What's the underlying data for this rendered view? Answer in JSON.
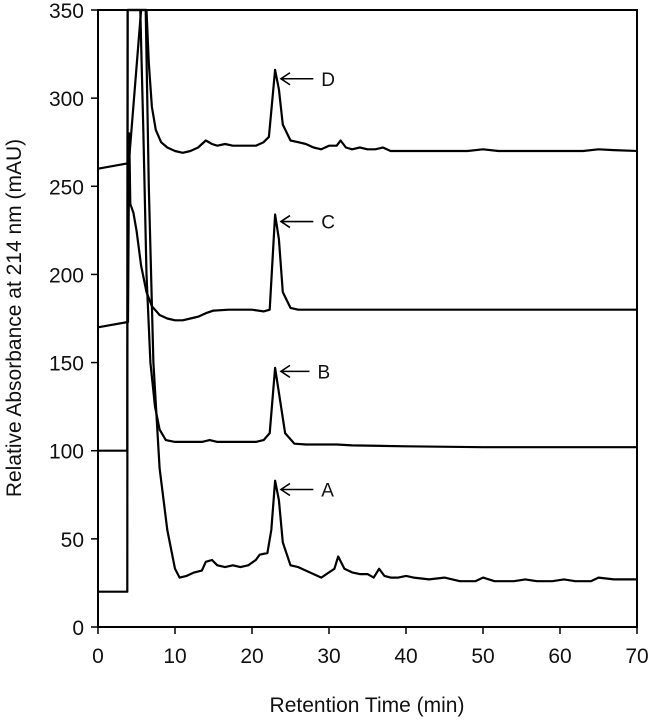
{
  "chart_data": {
    "type": "line",
    "title": "",
    "xlabel": "Retention Time (min)",
    "ylabel": "Relative Absorbance at 214 nm (mAU)",
    "xlim": [
      0,
      70
    ],
    "ylim": [
      0,
      350
    ],
    "x_ticks": [
      0,
      10,
      20,
      30,
      40,
      50,
      60,
      70
    ],
    "y_ticks": [
      0,
      50,
      100,
      150,
      200,
      250,
      300,
      350
    ],
    "grid": false,
    "legend": null,
    "series": [
      {
        "name": "A",
        "peak": {
          "x": 23.0,
          "y": 83
        },
        "points": [
          [
            0,
            20
          ],
          [
            3.8,
            20
          ],
          [
            3.85,
            350
          ],
          [
            6.2,
            350
          ],
          [
            6.6,
            250
          ],
          [
            7.2,
            150
          ],
          [
            8,
            90
          ],
          [
            9,
            55
          ],
          [
            10,
            33
          ],
          [
            10.6,
            28
          ],
          [
            11.5,
            29
          ],
          [
            12.5,
            31
          ],
          [
            13.5,
            32
          ],
          [
            14,
            37
          ],
          [
            14.8,
            38
          ],
          [
            15.5,
            35
          ],
          [
            16.5,
            34
          ],
          [
            17.5,
            35
          ],
          [
            18.5,
            34
          ],
          [
            19.5,
            35
          ],
          [
            20.5,
            38
          ],
          [
            21,
            41
          ],
          [
            22,
            42
          ],
          [
            22.5,
            55
          ],
          [
            23,
            83
          ],
          [
            23.5,
            72
          ],
          [
            24,
            48
          ],
          [
            25,
            35
          ],
          [
            26,
            34
          ],
          [
            27,
            32
          ],
          [
            28,
            30
          ],
          [
            29,
            28
          ],
          [
            30,
            31
          ],
          [
            30.7,
            33
          ],
          [
            31.2,
            40
          ],
          [
            32,
            33
          ],
          [
            33,
            31
          ],
          [
            34,
            30
          ],
          [
            35,
            30
          ],
          [
            35.8,
            28
          ],
          [
            36.5,
            33
          ],
          [
            37.2,
            29
          ],
          [
            38,
            28
          ],
          [
            39,
            28
          ],
          [
            40,
            29
          ],
          [
            41,
            28
          ],
          [
            43,
            27
          ],
          [
            45,
            28
          ],
          [
            47,
            26
          ],
          [
            49,
            26
          ],
          [
            50,
            28
          ],
          [
            51.5,
            26
          ],
          [
            54,
            26
          ],
          [
            55.5,
            27
          ],
          [
            57,
            26
          ],
          [
            59,
            26
          ],
          [
            60.5,
            27
          ],
          [
            62,
            26
          ],
          [
            64,
            26
          ],
          [
            65,
            28
          ],
          [
            67,
            27
          ],
          [
            70,
            27
          ]
        ]
      },
      {
        "name": "B",
        "peak": {
          "x": 23.0,
          "y": 147
        },
        "points": [
          [
            0,
            100
          ],
          [
            3.8,
            100
          ],
          [
            3.85,
            350
          ],
          [
            5.5,
            350
          ],
          [
            5.9,
            280
          ],
          [
            6.3,
            200
          ],
          [
            6.8,
            150
          ],
          [
            7.4,
            125
          ],
          [
            8,
            112
          ],
          [
            8.8,
            106
          ],
          [
            10,
            105
          ],
          [
            12,
            105
          ],
          [
            13.5,
            105
          ],
          [
            14.5,
            106
          ],
          [
            15.5,
            105
          ],
          [
            17,
            105
          ],
          [
            19,
            105
          ],
          [
            20.5,
            105
          ],
          [
            21.5,
            106
          ],
          [
            22.3,
            110
          ],
          [
            23,
            147
          ],
          [
            23.6,
            130
          ],
          [
            24.3,
            110
          ],
          [
            25.5,
            104
          ],
          [
            27,
            103.5
          ],
          [
            29,
            103.5
          ],
          [
            31,
            103.5
          ],
          [
            33,
            103
          ],
          [
            40,
            102.5
          ],
          [
            50,
            102
          ],
          [
            60,
            102
          ],
          [
            70,
            102
          ]
        ]
      },
      {
        "name": "C",
        "peak": {
          "x": 23.0,
          "y": 234
        },
        "points": [
          [
            0,
            170
          ],
          [
            3.9,
            173
          ],
          [
            4.05,
            280
          ],
          [
            4.2,
            240
          ],
          [
            4.6,
            235
          ],
          [
            5,
            225
          ],
          [
            5.6,
            205
          ],
          [
            6.3,
            190
          ],
          [
            7,
            182
          ],
          [
            8,
            177
          ],
          [
            9,
            175
          ],
          [
            10,
            174
          ],
          [
            11,
            174
          ],
          [
            12,
            175
          ],
          [
            13,
            176
          ],
          [
            14,
            178
          ],
          [
            15,
            179.5
          ],
          [
            17,
            180
          ],
          [
            20,
            180
          ],
          [
            21.5,
            179
          ],
          [
            22.3,
            180
          ],
          [
            23,
            234
          ],
          [
            23.5,
            220
          ],
          [
            24,
            190
          ],
          [
            25,
            181
          ],
          [
            26,
            180
          ],
          [
            30,
            180
          ],
          [
            40,
            180
          ],
          [
            50,
            180
          ],
          [
            60,
            180
          ],
          [
            70,
            180
          ]
        ]
      },
      {
        "name": "D",
        "peak": {
          "x": 23.0,
          "y": 316
        },
        "points": [
          [
            0,
            260
          ],
          [
            3.8,
            263
          ],
          [
            4.0,
            263
          ],
          [
            5.6,
            350
          ],
          [
            6.3,
            350
          ],
          [
            6.6,
            320
          ],
          [
            7.0,
            295
          ],
          [
            7.5,
            282
          ],
          [
            8.2,
            275
          ],
          [
            9,
            272
          ],
          [
            10,
            270
          ],
          [
            11,
            269
          ],
          [
            12,
            270
          ],
          [
            13,
            272
          ],
          [
            14,
            276
          ],
          [
            14.8,
            274
          ],
          [
            15.5,
            273
          ],
          [
            16.5,
            274
          ],
          [
            17.5,
            273
          ],
          [
            19,
            273
          ],
          [
            20.5,
            273
          ],
          [
            21.5,
            275
          ],
          [
            22.2,
            278
          ],
          [
            23,
            316
          ],
          [
            23.5,
            305
          ],
          [
            24,
            285
          ],
          [
            25,
            276
          ],
          [
            26,
            275
          ],
          [
            27,
            274
          ],
          [
            28,
            272
          ],
          [
            29,
            271
          ],
          [
            30,
            273
          ],
          [
            31,
            273
          ],
          [
            31.5,
            276
          ],
          [
            32.2,
            272
          ],
          [
            33,
            271
          ],
          [
            34,
            272
          ],
          [
            35,
            271
          ],
          [
            36,
            271
          ],
          [
            37,
            272
          ],
          [
            38,
            270
          ],
          [
            40,
            270
          ],
          [
            42,
            270
          ],
          [
            45,
            270
          ],
          [
            48,
            270
          ],
          [
            50,
            271
          ],
          [
            52,
            270
          ],
          [
            56,
            270
          ],
          [
            60,
            270
          ],
          [
            63,
            270
          ],
          [
            65,
            271
          ],
          [
            67,
            270.5
          ],
          [
            70,
            270
          ]
        ]
      }
    ],
    "annotations": [
      {
        "label": "A",
        "arrow_tip": {
          "x": 23.5,
          "y": 78
        },
        "text_at": {
          "x": 29,
          "y": 78
        }
      },
      {
        "label": "B",
        "arrow_tip": {
          "x": 23.5,
          "y": 145
        },
        "text_at": {
          "x": 28.5,
          "y": 145
        }
      },
      {
        "label": "C",
        "arrow_tip": {
          "x": 23.5,
          "y": 230
        },
        "text_at": {
          "x": 29,
          "y": 230
        }
      },
      {
        "label": "D",
        "arrow_tip": {
          "x": 23.5,
          "y": 311
        },
        "text_at": {
          "x": 29,
          "y": 311
        }
      }
    ]
  },
  "axes": {
    "xlabel": "Retention Time (min)",
    "ylabel": "Relative Absorbance at 214 nm (mAU)",
    "x_tick_labels": [
      "0",
      "10",
      "20",
      "30",
      "40",
      "50",
      "60",
      "70"
    ],
    "y_tick_labels": [
      "0",
      "50",
      "100",
      "150",
      "200",
      "250",
      "300",
      "350"
    ]
  },
  "colors": {
    "line": "#000000",
    "background": "#ffffff"
  }
}
